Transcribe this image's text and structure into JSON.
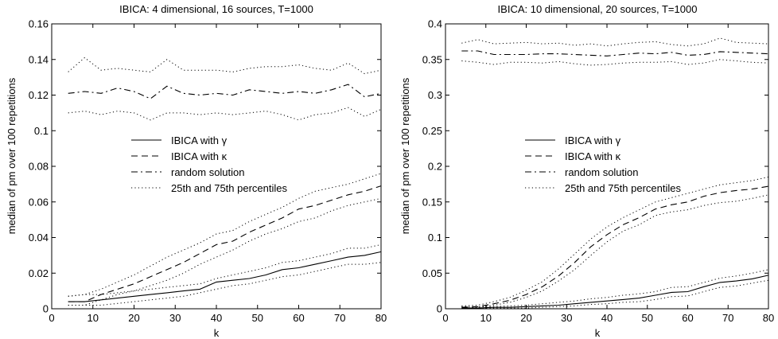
{
  "figure": {
    "charts": [
      {
        "title": "IBICA: 4 dimensional, 16 sources, T=1000",
        "xlabel": "k",
        "ylabel": "median of pm over 100 repetitions"
      },
      {
        "title": "IBICA: 10 dimensional, 20 sources, T=1000",
        "xlabel": "k",
        "ylabel": "median of pm over 100 repetitions"
      }
    ]
  },
  "chart_data": [
    {
      "type": "line",
      "title": "IBICA: 4 dimensional, 16 sources, T=1000",
      "xlabel": "k",
      "ylabel": "median of pm over 100 repetitions",
      "xlim": [
        0,
        80
      ],
      "ylim": [
        0,
        0.16
      ],
      "xticks": [
        0,
        10,
        20,
        30,
        40,
        50,
        60,
        70,
        80
      ],
      "xtick_labels": [
        "0",
        "10",
        "20",
        "30",
        "40",
        "50",
        "60",
        "70",
        "80"
      ],
      "yticks": [
        0,
        0.02,
        0.04,
        0.06,
        0.08,
        0.1,
        0.12,
        0.14,
        0.16
      ],
      "ytick_labels": [
        "0",
        "0.02",
        "0.04",
        "0.06",
        "0.08",
        "0.1",
        "0.12",
        "0.14",
        "0.16"
      ],
      "grid": false,
      "legend": {
        "placement": "center-left",
        "entries": [
          {
            "label": "IBICA with γ",
            "style": "solid"
          },
          {
            "label": "IBICA with κ",
            "style": "dashed"
          },
          {
            "label": "random solution",
            "style": "dashdot"
          },
          {
            "label": "25th and 75th percentiles",
            "style": "dotted"
          }
        ]
      },
      "x": [
        4,
        8,
        12,
        16,
        20,
        24,
        28,
        32,
        36,
        40,
        44,
        48,
        52,
        56,
        60,
        64,
        68,
        72,
        76,
        80
      ],
      "series": [
        {
          "name": "IBICA with γ",
          "style": "solid",
          "values": [
            0.004,
            0.004,
            0.005,
            0.006,
            0.007,
            0.008,
            0.009,
            0.01,
            0.011,
            0.015,
            0.016,
            0.017,
            0.019,
            0.022,
            0.023,
            0.025,
            0.027,
            0.029,
            0.03,
            0.032
          ]
        },
        {
          "style": "dotted",
          "values": [
            0.007,
            0.008,
            0.008,
            0.009,
            0.01,
            0.011,
            0.012,
            0.013,
            0.014,
            0.017,
            0.019,
            0.021,
            0.023,
            0.026,
            0.027,
            0.029,
            0.031,
            0.034,
            0.034,
            0.036
          ]
        },
        {
          "style": "dotted",
          "values": [
            0.002,
            0.002,
            0.002,
            0.003,
            0.004,
            0.005,
            0.006,
            0.007,
            0.009,
            0.011,
            0.013,
            0.014,
            0.016,
            0.018,
            0.019,
            0.021,
            0.023,
            0.025,
            0.025,
            0.026
          ]
        },
        {
          "name": "IBICA with κ",
          "style": "dashed",
          "values": [
            0.004,
            0.004,
            0.008,
            0.011,
            0.014,
            0.018,
            0.022,
            0.026,
            0.031,
            0.036,
            0.038,
            0.043,
            0.047,
            0.051,
            0.056,
            0.058,
            0.061,
            0.064,
            0.066,
            0.069
          ]
        },
        {
          "style": "dotted",
          "values": [
            0.007,
            0.008,
            0.011,
            0.015,
            0.019,
            0.024,
            0.029,
            0.033,
            0.037,
            0.042,
            0.044,
            0.049,
            0.053,
            0.057,
            0.062,
            0.066,
            0.068,
            0.07,
            0.073,
            0.076
          ]
        },
        {
          "style": "dotted",
          "values": [
            0.002,
            0.002,
            0.005,
            0.008,
            0.01,
            0.013,
            0.016,
            0.02,
            0.025,
            0.029,
            0.033,
            0.038,
            0.042,
            0.045,
            0.049,
            0.051,
            0.055,
            0.058,
            0.06,
            0.062
          ]
        },
        {
          "name": "random solution",
          "style": "dashdot",
          "values": [
            0.121,
            0.122,
            0.121,
            0.124,
            0.122,
            0.118,
            0.125,
            0.121,
            0.12,
            0.121,
            0.12,
            0.123,
            0.122,
            0.121,
            0.122,
            0.121,
            0.123,
            0.126,
            0.119,
            0.121
          ]
        },
        {
          "style": "dotted",
          "values": [
            0.133,
            0.141,
            0.134,
            0.135,
            0.134,
            0.133,
            0.14,
            0.134,
            0.134,
            0.134,
            0.133,
            0.135,
            0.136,
            0.136,
            0.137,
            0.135,
            0.134,
            0.138,
            0.132,
            0.134
          ]
        },
        {
          "style": "dotted",
          "values": [
            0.11,
            0.111,
            0.109,
            0.111,
            0.11,
            0.106,
            0.11,
            0.11,
            0.109,
            0.11,
            0.109,
            0.11,
            0.111,
            0.109,
            0.106,
            0.109,
            0.11,
            0.113,
            0.108,
            0.112
          ]
        }
      ]
    },
    {
      "type": "line",
      "title": "IBICA: 10 dimensional, 20 sources, T=1000",
      "xlabel": "k",
      "ylabel": "median of pm over 100 repetitions",
      "xlim": [
        0,
        80
      ],
      "ylim": [
        0,
        0.4
      ],
      "xticks": [
        0,
        10,
        20,
        30,
        40,
        50,
        60,
        70,
        80
      ],
      "xtick_labels": [
        "0",
        "10",
        "20",
        "30",
        "40",
        "50",
        "60",
        "70",
        "80"
      ],
      "yticks": [
        0,
        0.05,
        0.1,
        0.15,
        0.2,
        0.25,
        0.3,
        0.35,
        0.4
      ],
      "ytick_labels": [
        "0",
        "0.05",
        "0.1",
        "0.15",
        "0.2",
        "0.25",
        "0.3",
        "0.35",
        "0.4"
      ],
      "grid": false,
      "legend": {
        "placement": "center-left",
        "entries": [
          {
            "label": "IBICA with γ",
            "style": "solid"
          },
          {
            "label": "IBICA with κ",
            "style": "dashed"
          },
          {
            "label": "random solution",
            "style": "dashdot"
          },
          {
            "label": "25th and 75th percentiles",
            "style": "dotted"
          }
        ]
      },
      "x": [
        4,
        8,
        12,
        16,
        20,
        24,
        28,
        32,
        36,
        40,
        44,
        48,
        52,
        56,
        60,
        64,
        68,
        72,
        76,
        80
      ],
      "series": [
        {
          "name": "IBICA with γ",
          "style": "solid",
          "values": [
            0.001,
            0.001,
            0.002,
            0.002,
            0.003,
            0.004,
            0.005,
            0.007,
            0.009,
            0.011,
            0.013,
            0.015,
            0.019,
            0.023,
            0.024,
            0.031,
            0.037,
            0.039,
            0.042,
            0.047
          ]
        },
        {
          "style": "dotted",
          "values": [
            0.003,
            0.003,
            0.003,
            0.004,
            0.005,
            0.007,
            0.009,
            0.011,
            0.014,
            0.016,
            0.019,
            0.021,
            0.024,
            0.03,
            0.031,
            0.037,
            0.043,
            0.046,
            0.05,
            0.055
          ]
        },
        {
          "style": "dotted",
          "values": [
            0.0,
            0.0,
            0.001,
            0.001,
            0.001,
            0.002,
            0.003,
            0.004,
            0.006,
            0.007,
            0.009,
            0.01,
            0.013,
            0.017,
            0.018,
            0.024,
            0.03,
            0.032,
            0.036,
            0.04
          ]
        },
        {
          "name": "IBICA with κ",
          "style": "dashed",
          "values": [
            0.002,
            0.003,
            0.007,
            0.012,
            0.02,
            0.031,
            0.046,
            0.065,
            0.087,
            0.104,
            0.118,
            0.128,
            0.14,
            0.146,
            0.15,
            0.158,
            0.163,
            0.166,
            0.168,
            0.172
          ]
        },
        {
          "style": "dotted",
          "values": [
            0.004,
            0.005,
            0.01,
            0.016,
            0.026,
            0.038,
            0.056,
            0.077,
            0.098,
            0.115,
            0.128,
            0.139,
            0.15,
            0.156,
            0.162,
            0.168,
            0.174,
            0.177,
            0.18,
            0.185
          ]
        },
        {
          "style": "dotted",
          "values": [
            0.001,
            0.002,
            0.005,
            0.009,
            0.016,
            0.025,
            0.039,
            0.055,
            0.075,
            0.094,
            0.109,
            0.118,
            0.131,
            0.136,
            0.139,
            0.145,
            0.149,
            0.151,
            0.155,
            0.16
          ]
        },
        {
          "name": "random solution",
          "style": "dashdot",
          "values": [
            0.362,
            0.362,
            0.357,
            0.357,
            0.357,
            0.358,
            0.358,
            0.357,
            0.356,
            0.355,
            0.357,
            0.359,
            0.358,
            0.36,
            0.356,
            0.357,
            0.361,
            0.36,
            0.359,
            0.358
          ]
        },
        {
          "style": "dotted",
          "values": [
            0.373,
            0.378,
            0.372,
            0.373,
            0.374,
            0.372,
            0.373,
            0.37,
            0.372,
            0.369,
            0.372,
            0.374,
            0.375,
            0.371,
            0.369,
            0.372,
            0.38,
            0.374,
            0.373,
            0.372
          ]
        },
        {
          "style": "dotted",
          "values": [
            0.348,
            0.346,
            0.343,
            0.346,
            0.346,
            0.345,
            0.347,
            0.344,
            0.342,
            0.343,
            0.345,
            0.346,
            0.346,
            0.347,
            0.343,
            0.345,
            0.35,
            0.348,
            0.346,
            0.345
          ]
        }
      ]
    }
  ]
}
